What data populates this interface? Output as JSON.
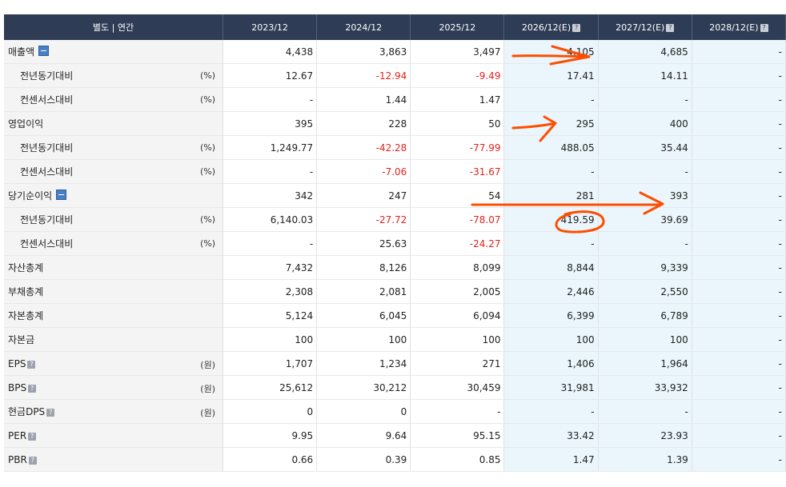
{
  "header": {
    "label": "별도 | 연간",
    "periods": [
      "2023/12",
      "2024/12",
      "2025/12",
      "2026/12(E)",
      "2027/12(E)",
      "2028/12(E)"
    ],
    "help_glyph": "?"
  },
  "rows": [
    {
      "label": "매출액",
      "unit": "",
      "sub": false,
      "icon": "minus-icon",
      "values": [
        "4,438",
        "3,863",
        "3,497",
        "4,105",
        "4,685",
        "-"
      ]
    },
    {
      "label": "전년동기대비",
      "unit": "(%)",
      "sub": true,
      "values": [
        "12.67",
        "-12.94",
        "-9.49",
        "17.41",
        "14.11",
        "-"
      ]
    },
    {
      "label": "컨센서스대비",
      "unit": "(%)",
      "sub": true,
      "values": [
        "-",
        "1.44",
        "1.47",
        "-",
        "-",
        "-"
      ]
    },
    {
      "label": "영업이익",
      "unit": "",
      "sub": false,
      "values": [
        "395",
        "228",
        "50",
        "295",
        "400",
        "-"
      ]
    },
    {
      "label": "전년동기대비",
      "unit": "(%)",
      "sub": true,
      "values": [
        "1,249.77",
        "-42.28",
        "-77.99",
        "488.05",
        "35.44",
        "-"
      ]
    },
    {
      "label": "컨센서스대비",
      "unit": "(%)",
      "sub": true,
      "values": [
        "-",
        "-7.06",
        "-31.67",
        "-",
        "-",
        "-"
      ]
    },
    {
      "label": "당기순이익",
      "unit": "",
      "sub": false,
      "icon": "minus-icon",
      "values": [
        "342",
        "247",
        "54",
        "281",
        "393",
        "-"
      ]
    },
    {
      "label": "전년동기대비",
      "unit": "(%)",
      "sub": true,
      "values": [
        "6,140.03",
        "-27.72",
        "-78.07",
        "419.59",
        "39.69",
        "-"
      ]
    },
    {
      "label": "컨센서스대비",
      "unit": "(%)",
      "sub": true,
      "values": [
        "-",
        "25.63",
        "-24.27",
        "-",
        "-",
        "-"
      ]
    },
    {
      "label": "자산총계",
      "unit": "",
      "sub": false,
      "values": [
        "7,432",
        "8,126",
        "8,099",
        "8,844",
        "9,339",
        "-"
      ]
    },
    {
      "label": "부채총계",
      "unit": "",
      "sub": false,
      "values": [
        "2,308",
        "2,081",
        "2,005",
        "2,446",
        "2,550",
        "-"
      ]
    },
    {
      "label": "자본총계",
      "unit": "",
      "sub": false,
      "values": [
        "5,124",
        "6,045",
        "6,094",
        "6,399",
        "6,789",
        "-"
      ]
    },
    {
      "label": "자본금",
      "unit": "",
      "sub": false,
      "values": [
        "100",
        "100",
        "100",
        "100",
        "100",
        "-"
      ]
    },
    {
      "label": "EPS",
      "unit": "(원)",
      "sub": false,
      "help": true,
      "values": [
        "1,707",
        "1,234",
        "271",
        "1,406",
        "1,964",
        "-"
      ]
    },
    {
      "label": "BPS",
      "unit": "(원)",
      "sub": false,
      "help": true,
      "values": [
        "25,612",
        "30,212",
        "30,459",
        "31,981",
        "33,932",
        "-"
      ]
    },
    {
      "label": "현금DPS",
      "unit": "(원)",
      "sub": false,
      "help": true,
      "values": [
        "0",
        "0",
        "-",
        "-",
        "-",
        "-"
      ]
    },
    {
      "label": "PER",
      "unit": "",
      "sub": false,
      "help": true,
      "values": [
        "9.95",
        "9.64",
        "95.15",
        "33.42",
        "23.93",
        "-"
      ]
    },
    {
      "label": "PBR",
      "unit": "",
      "sub": false,
      "help": true,
      "values": [
        "0.66",
        "0.39",
        "0.85",
        "1.47",
        "1.39",
        "-"
      ]
    }
  ],
  "colors": {
    "header_bg": "#2f3c55",
    "negative": "#e2231a",
    "estimate_bg": "#eaf6fb",
    "annotation": "#ff4d00"
  }
}
